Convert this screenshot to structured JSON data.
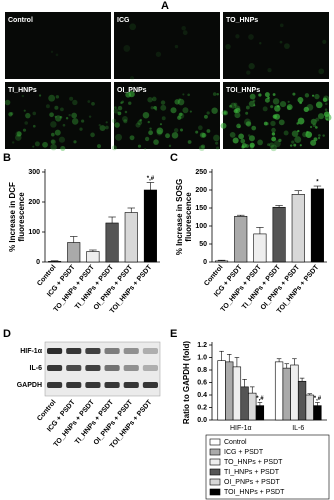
{
  "panel_a": {
    "label": "A",
    "images": [
      "Control",
      "ICG",
      "TO_HNPs",
      "TI_HNPs",
      "OI_PNPs",
      "TOI_HNPs"
    ]
  },
  "panel_d": {
    "label": "D",
    "rows": [
      "HIF-1α",
      "IL-6",
      "GAPDH"
    ],
    "lanes": [
      "Control",
      "ICG + PSDT",
      "TO_HNPs + PSDT",
      "TI_HNPs + PSDT",
      "OI_PNPs + PSDT",
      "TOI_HNPs + PSDT"
    ]
  },
  "chart_data": [
    {
      "type": "bar",
      "panel_label": "B",
      "ylabel": [
        "% Increase in DCF",
        "fluorescence"
      ],
      "categories": [
        "Control",
        "ICG + PSDT",
        "TO_HNPs + PSDT",
        "TI_HNPs + PSDT",
        "OI_PNPs + PSDT",
        "TOI_HNPs + PSDT"
      ],
      "values": [
        2,
        65,
        35,
        130,
        165,
        240
      ],
      "errors": [
        2,
        20,
        5,
        20,
        15,
        25
      ],
      "colors": [
        "#ffffff",
        "#aaaaaa",
        "#eeeeee",
        "#555555",
        "#d8d8d8",
        "#000000"
      ],
      "annotations": [
        null,
        null,
        null,
        null,
        null,
        "*,#"
      ],
      "ylim": [
        0,
        300
      ],
      "yticks": [
        0,
        100,
        200,
        300
      ]
    },
    {
      "type": "bar",
      "panel_label": "C",
      "ylabel": [
        "% Increase in SOSG",
        "fluorescence"
      ],
      "categories": [
        "Control",
        "ICG + PSDT",
        "TO_HNPs + PSDT",
        "TI_HNPs + PSDT",
        "OI_PNPs + PSDT",
        "TOI_HNPs + PSDT"
      ],
      "values": [
        3,
        127,
        78,
        152,
        188,
        203
      ],
      "errors": [
        2,
        3,
        18,
        5,
        10,
        8
      ],
      "colors": [
        "#ffffff",
        "#aaaaaa",
        "#eeeeee",
        "#555555",
        "#d8d8d8",
        "#000000"
      ],
      "annotations": [
        null,
        null,
        null,
        null,
        null,
        "*"
      ],
      "ylim": [
        0,
        250
      ],
      "yticks": [
        0,
        50,
        100,
        150,
        200,
        250
      ]
    },
    {
      "type": "bar",
      "panel_label": "E",
      "ylabel": [
        "Ratio to GAPDH (fold)"
      ],
      "categories": [
        "HIF-1α",
        "IL-6"
      ],
      "series": [
        {
          "name": "Control",
          "color": "#ffffff",
          "values": [
            0.95,
            0.93
          ],
          "errors": [
            0.15,
            0.05
          ]
        },
        {
          "name": "ICG + PSDT",
          "color": "#aaaaaa",
          "values": [
            0.93,
            0.83
          ],
          "errors": [
            0.12,
            0.07
          ]
        },
        {
          "name": "TO_HNPs + PSDT",
          "color": "#eeeeee",
          "values": [
            0.85,
            0.88
          ],
          "errors": [
            0.15,
            0.1
          ]
        },
        {
          "name": "TI_HNPs + PSDT",
          "color": "#555555",
          "values": [
            0.53,
            0.62
          ],
          "errors": [
            0.12,
            0.05
          ]
        },
        {
          "name": "OI_PNPs + PSDT",
          "color": "#d8d8d8",
          "values": [
            0.43,
            0.4
          ],
          "errors": [
            0.1,
            0.02
          ]
        },
        {
          "name": "TOI_HNPs + PSDT",
          "color": "#000000",
          "values": [
            0.23,
            0.23
          ],
          "errors": [
            0.05,
            0.05
          ],
          "annotations": [
            "*,#",
            "*,#"
          ]
        }
      ],
      "ylim": [
        0,
        1.2
      ],
      "yticks": [
        {
          "value": 0,
          "label": "0.0"
        },
        0.2,
        0.4,
        0.6,
        0.8,
        {
          "value": 1,
          "label": "1.0"
        },
        1.2
      ]
    }
  ]
}
